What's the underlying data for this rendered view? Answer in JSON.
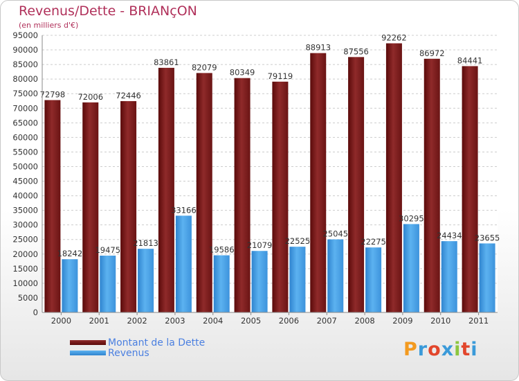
{
  "title": "Revenus/Dette - BRIANçON",
  "subtitle": "(en milliers d'€)",
  "logo": {
    "text": "Proxiti",
    "colors": [
      "#f39a1f",
      "#3a9ad9",
      "#e2462c",
      "#3a9ad9",
      "#8cc63f",
      "#e2462c",
      "#3a9ad9"
    ]
  },
  "colors": {
    "dette": "#7e1e1e",
    "revenus": "#4aa3e8",
    "axis_text": "#333333",
    "grid": "#cccccc"
  },
  "chart_data": {
    "type": "bar",
    "categories": [
      "2000",
      "2001",
      "2002",
      "2003",
      "2004",
      "2005",
      "2006",
      "2007",
      "2008",
      "2009",
      "2010",
      "2011"
    ],
    "series": [
      {
        "name": "Montant de la Dette",
        "values": [
          72798,
          72006,
          72446,
          83861,
          82079,
          80349,
          79119,
          88913,
          87556,
          92262,
          86972,
          84441
        ]
      },
      {
        "name": "Revenus",
        "values": [
          18242,
          19475,
          21813,
          33166,
          19586,
          21079,
          22525,
          25045,
          22275,
          30295,
          24434,
          23655
        ]
      }
    ],
    "ylim": [
      0,
      95000
    ],
    "yticks": [
      0,
      5000,
      10000,
      15000,
      20000,
      25000,
      30000,
      35000,
      40000,
      45000,
      50000,
      55000,
      60000,
      65000,
      70000,
      75000,
      80000,
      85000,
      90000,
      95000
    ],
    "grid": true,
    "legend_position": "bottom-left"
  }
}
